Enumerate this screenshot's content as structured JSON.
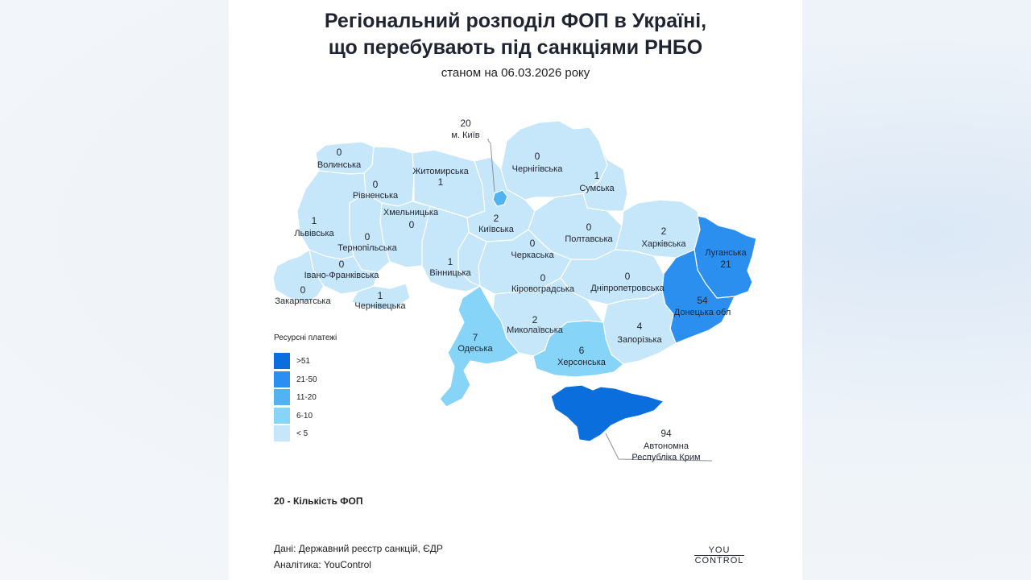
{
  "header": {
    "title_line1": "Регіональний розподіл ФОП в Україні,",
    "title_line2": "що перебувають під санкціями РНБО",
    "subtitle": "станом на 06.03.2026 року"
  },
  "colors": {
    "gt51": "#0a6fdc",
    "c21_50": "#2b8ff0",
    "c11_20": "#52b3f2",
    "c6_10": "#86d4f7",
    "lt5": "#c6e6f9",
    "border": "#ffffff"
  },
  "legend": {
    "title": "Ресурсні платежі",
    "items": [
      {
        "label": ">51",
        "color": "#0a6fdc"
      },
      {
        "label": "21-50",
        "color": "#2b8ff0"
      },
      {
        "label": "11-20",
        "color": "#52b3f2"
      },
      {
        "label": "6-10",
        "color": "#86d4f7"
      },
      {
        "label": "< 5",
        "color": "#c6e6f9"
      }
    ]
  },
  "regions": [
    {
      "name": "Волинська",
      "value": "0"
    },
    {
      "name": "Рівненська",
      "value": "0"
    },
    {
      "name": "Житомирська",
      "value": "1"
    },
    {
      "name": "м. Київ",
      "value": "20"
    },
    {
      "name": "Чернігівська",
      "value": "0"
    },
    {
      "name": "Сумська",
      "value": "1"
    },
    {
      "name": "Львівська",
      "value": "1"
    },
    {
      "name": "Хмельницька",
      "value": "0"
    },
    {
      "name": "Київська",
      "value": "2"
    },
    {
      "name": "Полтавська",
      "value": "0"
    },
    {
      "name": "Харківська",
      "value": "2"
    },
    {
      "name": "Тернопільська",
      "value": "0"
    },
    {
      "name": "Черкаська",
      "value": "0"
    },
    {
      "name": "Луганська",
      "value": "21"
    },
    {
      "name": "Івано-Франківська",
      "value": "0"
    },
    {
      "name": "Вінницька",
      "value": "1"
    },
    {
      "name": "Кіровоградська",
      "value": "0"
    },
    {
      "name": "Дніпропетровська",
      "value": "0"
    },
    {
      "name": "Закарпатська",
      "value": "0"
    },
    {
      "name": "Чернівецька",
      "value": "1"
    },
    {
      "name": "Донецька обл",
      "value": "54"
    },
    {
      "name": "Миколаївська",
      "value": "2"
    },
    {
      "name": "Запорізька",
      "value": "4"
    },
    {
      "name": "Одеська",
      "value": "7"
    },
    {
      "name": "Херсонська",
      "value": "6"
    },
    {
      "name": "Автономна Республіка Крим",
      "value": "94"
    }
  ],
  "crimea_label": {
    "line1": "Автономна",
    "line2": "Республіка Крим"
  },
  "count_note": "20 - Кількість ФОП",
  "sources": {
    "data": "Дані: Державний реєстр санкцій, ЄДР",
    "analytics": "Аналітика: YouControl"
  },
  "logo": {
    "top": "YOU",
    "bottom": "CONTROL"
  }
}
